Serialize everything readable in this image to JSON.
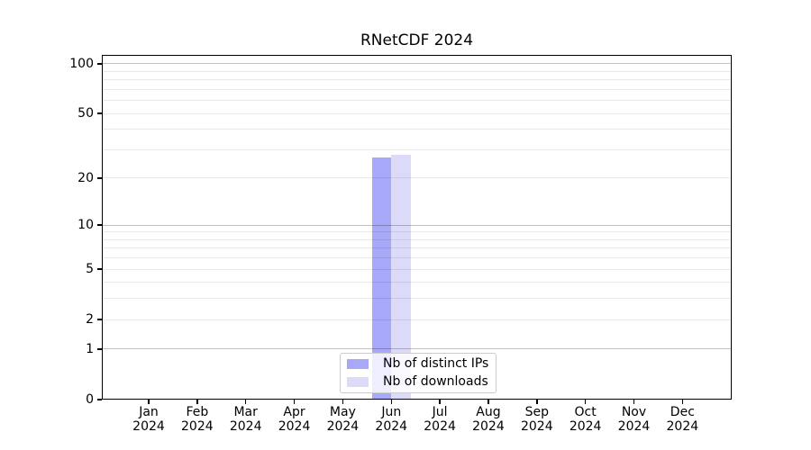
{
  "chart_data": {
    "type": "bar",
    "title": "RNetCDF 2024",
    "x_categories": [
      {
        "month": "Jan",
        "year": "2024"
      },
      {
        "month": "Feb",
        "year": "2024"
      },
      {
        "month": "Mar",
        "year": "2024"
      },
      {
        "month": "Apr",
        "year": "2024"
      },
      {
        "month": "May",
        "year": "2024"
      },
      {
        "month": "Jun",
        "year": "2024"
      },
      {
        "month": "Jul",
        "year": "2024"
      },
      {
        "month": "Aug",
        "year": "2024"
      },
      {
        "month": "Sep",
        "year": "2024"
      },
      {
        "month": "Oct",
        "year": "2024"
      },
      {
        "month": "Nov",
        "year": "2024"
      },
      {
        "month": "Dec",
        "year": "2024"
      }
    ],
    "series": [
      {
        "name": "Nb of distinct IPs",
        "color": "#a8a8f8",
        "values": [
          0,
          0,
          0,
          0,
          0,
          27,
          0,
          0,
          0,
          0,
          0,
          0
        ]
      },
      {
        "name": "Nb of downloads",
        "color": "#dbdbf9",
        "values": [
          0,
          0,
          0,
          0,
          0,
          28,
          0,
          0,
          0,
          0,
          0,
          0
        ]
      }
    ],
    "y_axis": {
      "scale": "log1p",
      "tick_labels": [
        0,
        1,
        2,
        5,
        10,
        20,
        50,
        100
      ],
      "major_gridlines": [
        1,
        10,
        100
      ],
      "minor_gridlines": [
        2,
        3,
        4,
        5,
        6,
        7,
        8,
        9,
        20,
        30,
        40,
        50,
        60,
        70,
        80,
        90
      ],
      "range_displayed": [
        0,
        113
      ]
    },
    "grid": "on",
    "legend_position": "lower center"
  }
}
